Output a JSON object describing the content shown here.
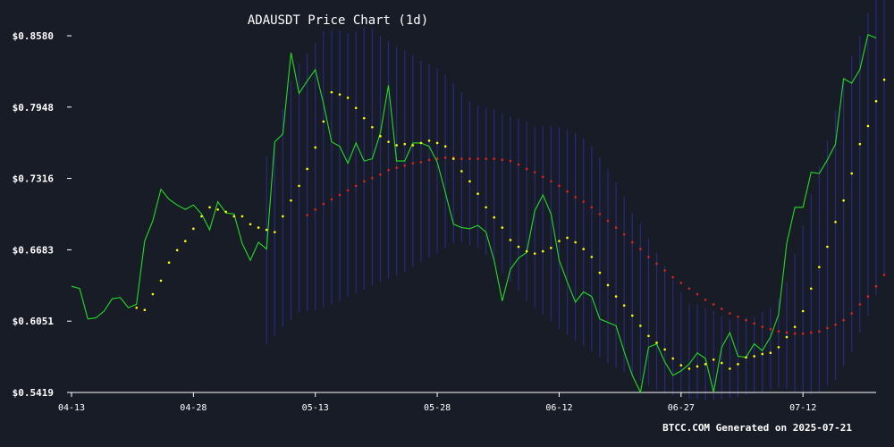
{
  "chart_data": {
    "type": "line",
    "title": "ADAUSDT Price Chart (1d)",
    "footer": "BTCC.COM Generated on 2025-07-21",
    "xlabel": "",
    "ylabel": "",
    "x_start": "2025-04-13",
    "x_end": "2025-07-21",
    "x_ticks": [
      "04-13",
      "04-28",
      "05-13",
      "05-28",
      "06-12",
      "06-27",
      "07-12"
    ],
    "y_ticks": [
      "$0.5419",
      "$0.6051",
      "$0.6683",
      "$0.7316",
      "$0.7948",
      "$0.8580"
    ],
    "ylim": [
      0.5419,
      0.858
    ],
    "grid": false,
    "legend": "none",
    "colors": {
      "background": "#181c27",
      "price": "#22dd22",
      "ma_fast": "#ffff00",
      "ma_slow": "#dd2222",
      "bands": "#2a2a88",
      "axis": "#ffffff"
    },
    "series": [
      {
        "key": "price",
        "style": "line",
        "values": [
          0.636,
          0.634,
          0.607,
          0.608,
          0.614,
          0.625,
          0.626,
          0.617,
          0.62,
          0.676,
          0.694,
          0.722,
          0.713,
          0.708,
          0.704,
          0.708,
          0.7,
          0.686,
          0.711,
          0.701,
          0.7,
          0.674,
          0.659,
          0.675,
          0.669,
          0.764,
          0.771,
          0.843,
          0.807,
          0.818,
          0.828,
          0.798,
          0.764,
          0.76,
          0.745,
          0.763,
          0.747,
          0.749,
          0.772,
          0.814,
          0.747,
          0.747,
          0.763,
          0.763,
          0.76,
          0.746,
          0.719,
          0.691,
          0.688,
          0.687,
          0.69,
          0.684,
          0.659,
          0.623,
          0.651,
          0.661,
          0.666,
          0.703,
          0.717,
          0.7,
          0.659,
          0.64,
          0.622,
          0.631,
          0.627,
          0.607,
          0.604,
          0.601,
          0.578,
          0.557,
          0.542,
          0.582,
          0.585,
          0.569,
          0.557,
          0.561,
          0.567,
          0.577,
          0.572,
          0.542,
          0.582,
          0.595,
          0.574,
          0.573,
          0.585,
          0.579,
          0.591,
          0.611,
          0.674,
          0.706,
          0.706,
          0.737,
          0.736,
          0.748,
          0.762,
          0.82,
          0.816,
          0.828,
          0.859,
          0.856
        ]
      },
      {
        "key": "ma_fast",
        "style": "dots",
        "values": [
          null,
          null,
          null,
          null,
          null,
          null,
          null,
          null,
          0.617,
          0.615,
          0.629,
          0.641,
          0.657,
          0.668,
          0.676,
          0.687,
          0.698,
          0.706,
          0.704,
          0.702,
          0.698,
          0.698,
          0.691,
          0.688,
          0.686,
          0.684,
          0.698,
          0.712,
          0.725,
          0.74,
          0.759,
          0.782,
          0.808,
          0.806,
          0.803,
          0.794,
          0.785,
          0.777,
          0.769,
          0.764,
          0.761,
          0.762,
          0.761,
          0.763,
          0.765,
          0.763,
          0.76,
          0.749,
          0.738,
          0.729,
          0.718,
          0.706,
          0.697,
          0.688,
          0.677,
          0.671,
          0.667,
          0.665,
          0.667,
          0.67,
          0.676,
          0.679,
          0.675,
          0.669,
          0.662,
          0.648,
          0.637,
          0.627,
          0.619,
          0.61,
          0.601,
          0.592,
          0.586,
          0.58,
          0.572,
          0.566,
          0.563,
          0.565,
          0.567,
          0.571,
          0.568,
          0.563,
          0.567,
          0.573,
          0.574,
          0.576,
          0.577,
          0.582,
          0.591,
          0.6,
          0.614,
          0.634,
          0.653,
          0.671,
          0.693,
          0.712,
          0.736,
          0.762,
          0.778,
          0.8,
          0.819
        ]
      },
      {
        "key": "ma_slow",
        "style": "dots",
        "values": [
          null,
          null,
          null,
          null,
          null,
          null,
          null,
          null,
          null,
          null,
          null,
          null,
          null,
          null,
          null,
          null,
          null,
          null,
          null,
          null,
          null,
          null,
          null,
          null,
          null,
          null,
          null,
          null,
          null,
          0.699,
          0.704,
          0.709,
          0.713,
          0.717,
          0.721,
          0.725,
          0.729,
          0.732,
          0.735,
          0.739,
          0.741,
          0.743,
          0.745,
          0.746,
          0.748,
          0.749,
          0.75,
          0.75,
          0.749,
          0.749,
          0.749,
          0.749,
          0.749,
          0.748,
          0.747,
          0.744,
          0.74,
          0.737,
          0.733,
          0.729,
          0.725,
          0.72,
          0.715,
          0.711,
          0.706,
          0.7,
          0.694,
          0.688,
          0.682,
          0.675,
          0.669,
          0.662,
          0.656,
          0.65,
          0.644,
          0.639,
          0.634,
          0.629,
          0.624,
          0.62,
          0.616,
          0.612,
          0.609,
          0.606,
          0.603,
          0.6,
          0.598,
          0.596,
          0.595,
          0.594,
          0.594,
          0.595,
          0.596,
          0.599,
          0.602,
          0.606,
          0.612,
          0.62,
          0.627,
          0.636,
          0.646
        ]
      },
      {
        "key": "bands",
        "style": "vertical-bars",
        "upper": [
          null,
          null,
          null,
          null,
          null,
          null,
          null,
          null,
          null,
          null,
          null,
          null,
          null,
          null,
          null,
          null,
          null,
          null,
          null,
          null,
          null,
          null,
          null,
          null,
          0.751,
          0.763,
          0.793,
          0.818,
          0.833,
          0.842,
          0.852,
          0.862,
          0.863,
          0.863,
          0.86,
          0.862,
          0.865,
          0.865,
          0.858,
          0.853,
          0.848,
          0.845,
          0.841,
          0.836,
          0.833,
          0.829,
          0.823,
          0.816,
          0.808,
          0.8,
          0.796,
          0.794,
          0.793,
          0.789,
          0.786,
          0.785,
          0.782,
          0.777,
          0.778,
          0.778,
          0.777,
          0.775,
          0.772,
          0.767,
          0.76,
          0.75,
          0.74,
          0.728,
          0.715,
          0.701,
          0.691,
          0.678,
          0.666,
          0.654,
          0.642,
          0.631,
          0.62,
          0.62,
          0.617,
          0.614,
          0.61,
          0.607,
          0.607,
          0.609,
          0.609,
          0.613,
          0.617,
          0.625,
          0.64,
          0.665,
          0.69,
          0.718,
          0.742,
          0.765,
          0.792,
          0.818,
          0.84,
          0.858,
          0.878,
          0.895,
          0.915
        ]
      },
      {
        "key": "bands",
        "style": "vertical-bars",
        "lower": [
          null,
          null,
          null,
          null,
          null,
          null,
          null,
          null,
          null,
          null,
          null,
          null,
          null,
          null,
          null,
          null,
          null,
          null,
          null,
          null,
          null,
          null,
          null,
          null,
          0.585,
          0.592,
          0.6,
          0.606,
          0.613,
          0.614,
          0.615,
          0.617,
          0.62,
          0.623,
          0.627,
          0.63,
          0.633,
          0.637,
          0.64,
          0.643,
          0.646,
          0.649,
          0.653,
          0.658,
          0.661,
          0.665,
          0.67,
          0.674,
          0.675,
          0.672,
          0.67,
          0.664,
          0.656,
          0.648,
          0.64,
          0.632,
          0.623,
          0.617,
          0.611,
          0.605,
          0.598,
          0.593,
          0.588,
          0.583,
          0.578,
          0.573,
          0.568,
          0.564,
          0.56,
          0.556,
          0.552,
          0.548,
          0.544,
          0.541,
          0.539,
          0.538,
          0.536,
          0.536,
          0.535,
          0.535,
          0.536,
          0.537,
          0.538,
          0.54,
          0.541,
          0.542,
          0.544,
          0.546,
          0.545,
          0.543,
          0.54,
          0.54,
          0.542,
          0.548,
          0.553,
          0.565,
          0.578,
          0.595,
          0.61,
          0.628,
          0.646
        ]
      }
    ]
  }
}
